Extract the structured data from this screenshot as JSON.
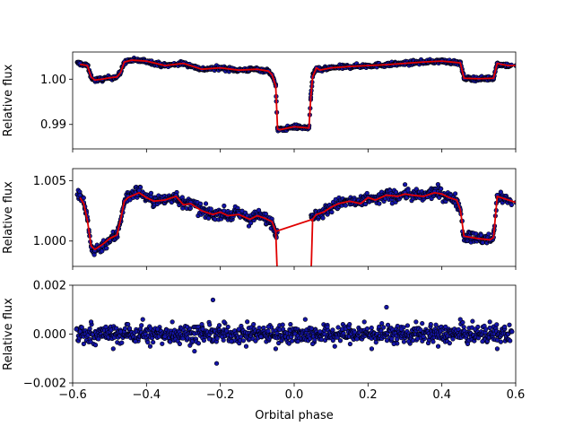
{
  "figure": {
    "xlabel": "Orbital phase",
    "xlim": [
      -0.6,
      0.6
    ],
    "xticks": [
      -0.6,
      -0.4,
      -0.2,
      0.0,
      0.2,
      0.4,
      0.6
    ],
    "xtick_labels": [
      "−0.6",
      "−0.4",
      "−0.2",
      "0.0",
      "0.2",
      "0.4",
      "0.6"
    ]
  },
  "colors": {
    "point_face": "#1414a8",
    "point_edge": "#000000",
    "model_line": "#e00000"
  },
  "chart_data": [
    {
      "type": "scatter",
      "title": "",
      "ylabel": "Relative flux",
      "xlim": [
        -0.6,
        0.6
      ],
      "ylim": [
        0.9846,
        1.006
      ],
      "yticks": [
        0.99,
        1.0
      ],
      "ytick_labels": [
        "0.99",
        "1.00"
      ],
      "grid": false,
      "series": [
        {
          "kind": "points",
          "x": [
            -0.58,
            -0.56,
            -0.55,
            -0.54,
            -0.52,
            -0.5,
            -0.48,
            -0.47,
            -0.46,
            -0.44,
            -0.4,
            -0.35,
            -0.3,
            -0.25,
            -0.2,
            -0.15,
            -0.1,
            -0.07,
            -0.06,
            -0.05,
            -0.045,
            -0.04,
            0.0,
            0.04,
            0.045,
            0.05,
            0.06,
            0.07,
            0.1,
            0.15,
            0.2,
            0.25,
            0.3,
            0.35,
            0.4,
            0.45,
            0.46,
            0.5,
            0.54,
            0.55,
            0.56,
            0.58,
            0.6
          ],
          "y": [
            1.0035,
            1.003,
            1.0005,
            0.9998,
            1.0,
            1.0003,
            1.0005,
            1.0015,
            1.0038,
            1.0042,
            1.004,
            1.003,
            1.0035,
            1.0022,
            1.0025,
            1.002,
            1.0022,
            1.0018,
            1.001,
            0.9985,
            0.989,
            0.9888,
            0.9895,
            0.9892,
            0.996,
            1.0005,
            1.0025,
            1.002,
            1.0025,
            1.0028,
            1.003,
            1.0032,
            1.0035,
            1.0038,
            1.004,
            1.0036,
            1.0002,
            1.0001,
            1.0002,
            1.0035,
            1.0033,
            1.003,
            1.003
          ]
        },
        {
          "kind": "model",
          "x": [
            -0.58,
            -0.56,
            -0.55,
            -0.54,
            -0.52,
            -0.5,
            -0.48,
            -0.47,
            -0.46,
            -0.44,
            -0.4,
            -0.35,
            -0.3,
            -0.25,
            -0.2,
            -0.15,
            -0.1,
            -0.07,
            -0.06,
            -0.05,
            -0.045,
            -0.04,
            0.0,
            0.04,
            0.045,
            0.05,
            0.06,
            0.07,
            0.1,
            0.15,
            0.2,
            0.25,
            0.3,
            0.35,
            0.4,
            0.45,
            0.46,
            0.5,
            0.54,
            0.55,
            0.56,
            0.58,
            0.6
          ],
          "y": [
            1.0033,
            1.003,
            1.0005,
            0.9998,
            1.0,
            1.0003,
            1.0005,
            1.0015,
            1.0038,
            1.0042,
            1.004,
            1.003,
            1.0035,
            1.0022,
            1.0025,
            1.002,
            1.0022,
            1.0018,
            1.001,
            0.9985,
            0.989,
            0.9888,
            0.9895,
            0.9892,
            0.996,
            1.0005,
            1.0025,
            1.002,
            1.0025,
            1.0028,
            1.003,
            1.0032,
            1.0035,
            1.0038,
            1.004,
            1.0036,
            1.0002,
            1.0001,
            1.0002,
            1.0035,
            1.0033,
            1.003,
            1.003
          ]
        }
      ]
    },
    {
      "type": "scatter",
      "title": "",
      "ylabel": "Relative flux",
      "xlim": [
        -0.6,
        0.6
      ],
      "ylim": [
        0.9979,
        1.006
      ],
      "yticks": [
        1.0,
        1.005
      ],
      "ytick_labels": [
        "1.000",
        "1.005"
      ],
      "grid": false,
      "series": [
        {
          "kind": "points",
          "x": [
            -0.58,
            -0.57,
            -0.56,
            -0.55,
            -0.54,
            -0.53,
            -0.52,
            -0.5,
            -0.48,
            -0.47,
            -0.46,
            -0.45,
            -0.42,
            -0.4,
            -0.38,
            -0.35,
            -0.32,
            -0.3,
            -0.28,
            -0.25,
            -0.22,
            -0.2,
            -0.18,
            -0.15,
            -0.12,
            -0.1,
            -0.08,
            -0.06,
            -0.05,
            0.05,
            0.06,
            0.08,
            0.1,
            0.12,
            0.15,
            0.18,
            0.2,
            0.22,
            0.25,
            0.28,
            0.3,
            0.32,
            0.35,
            0.38,
            0.4,
            0.42,
            0.44,
            0.45,
            0.46,
            0.5,
            0.53,
            0.54,
            0.55,
            0.57,
            0.6
          ],
          "y": [
            1.0038,
            1.0032,
            1.0018,
            0.9995,
            0.9992,
            0.9994,
            0.9996,
            1.0001,
            1.0005,
            1.0018,
            1.0033,
            1.0037,
            1.0042,
            1.0036,
            1.0033,
            1.0034,
            1.0038,
            1.003,
            1.0032,
            1.0025,
            1.0022,
            1.0024,
            1.0021,
            1.0023,
            1.0018,
            1.0021,
            1.0019,
            1.0016,
            1.0008,
            1.0018,
            1.0022,
            1.0024,
            1.0028,
            1.0031,
            1.0033,
            1.0031,
            1.0036,
            1.0034,
            1.0038,
            1.0037,
            1.004,
            1.0038,
            1.0037,
            1.0041,
            1.0039,
            1.0036,
            1.0034,
            1.0026,
            1.0004,
            1.0002,
            1.0001,
            1.0003,
            1.0038,
            1.0035,
            1.0032
          ]
        },
        {
          "kind": "model",
          "x": [
            -0.58,
            -0.57,
            -0.56,
            -0.55,
            -0.54,
            -0.53,
            -0.52,
            -0.5,
            -0.48,
            -0.47,
            -0.46,
            -0.45,
            -0.42,
            -0.4,
            -0.38,
            -0.35,
            -0.32,
            -0.3,
            -0.28,
            -0.25,
            -0.22,
            -0.2,
            -0.18,
            -0.15,
            -0.12,
            -0.1,
            -0.08,
            -0.06,
            -0.05,
            0.05,
            0.06,
            0.08,
            0.1,
            0.12,
            0.15,
            0.18,
            0.2,
            0.22,
            0.25,
            0.28,
            0.3,
            0.32,
            0.35,
            0.38,
            0.4,
            0.42,
            0.44,
            0.45,
            0.46,
            0.5,
            0.53,
            0.54,
            0.55,
            0.57,
            0.6
          ],
          "y": [
            1.0036,
            1.0031,
            1.0017,
            0.9996,
            0.9993,
            0.9995,
            0.9997,
            1.0002,
            1.0005,
            1.0018,
            1.0033,
            1.0036,
            1.004,
            1.0036,
            1.0033,
            1.0034,
            1.0037,
            1.003,
            1.0031,
            1.0025,
            1.0022,
            1.0024,
            1.0021,
            1.0022,
            1.0018,
            1.0021,
            1.0019,
            1.0016,
            1.0008,
            1.0018,
            1.0022,
            1.0024,
            1.0028,
            1.0031,
            1.0033,
            1.0031,
            1.0036,
            1.0034,
            1.0038,
            1.0037,
            1.0039,
            1.0038,
            1.0037,
            1.004,
            1.0039,
            1.0036,
            1.0034,
            1.0026,
            1.0004,
            1.0002,
            1.0001,
            1.0003,
            1.0037,
            1.0035,
            1.0032
          ]
        }
      ]
    },
    {
      "type": "scatter",
      "title": "",
      "ylabel": "Relative flux",
      "xlim": [
        -0.6,
        0.6
      ],
      "ylim": [
        -0.002,
        0.002
      ],
      "yticks": [
        -0.002,
        0.0,
        0.002
      ],
      "ytick_labels": [
        "−0.002",
        "0.000",
        "0.002"
      ],
      "grid": false,
      "series": [
        {
          "kind": "residuals",
          "x": [
            -0.59,
            -0.57,
            -0.55,
            -0.53,
            -0.51,
            -0.49,
            -0.47,
            -0.45,
            -0.43,
            -0.41,
            -0.39,
            -0.37,
            -0.35,
            -0.33,
            -0.31,
            -0.29,
            -0.27,
            -0.25,
            -0.23,
            -0.22,
            -0.21,
            -0.19,
            -0.17,
            -0.15,
            -0.13,
            -0.11,
            -0.09,
            -0.07,
            -0.05,
            -0.03,
            -0.01,
            0.01,
            0.03,
            0.05,
            0.07,
            0.09,
            0.11,
            0.13,
            0.15,
            0.17,
            0.19,
            0.21,
            0.23,
            0.25,
            0.27,
            0.29,
            0.31,
            0.33,
            0.35,
            0.37,
            0.39,
            0.41,
            0.43,
            0.45,
            0.47,
            0.49,
            0.51,
            0.53,
            0.55,
            0.57,
            0.59
          ],
          "y": [
            0.0002,
            -0.0004,
            0.0005,
            -0.0002,
            0.0003,
            -0.0006,
            0.0001,
            0.0004,
            -0.0003,
            0.0006,
            -0.0005,
            0.0002,
            -0.0001,
            0.0005,
            -0.0004,
            0.0003,
            -0.0007,
            0.0004,
            -0.0002,
            0.0014,
            -0.0012,
            0.0005,
            -0.0003,
            0.0002,
            -0.0005,
            0.0004,
            -0.0001,
            0.0003,
            -0.0006,
            0.0002,
            0.0004,
            -0.0003,
            0.0006,
            -0.0004,
            0.0001,
            0.0003,
            -0.0005,
            0.0002,
            0.0004,
            -0.0002,
            0.0005,
            -0.0006,
            0.0003,
            0.0011,
            -0.0004,
            0.0002,
            -0.0003,
            0.0005,
            -0.0001,
            0.0004,
            -0.0005,
            0.0003,
            -0.0002,
            0.0006,
            -0.0004,
            0.0002,
            -0.0003,
            0.0005,
            -0.0006,
            0.0003,
            0.0001
          ]
        }
      ]
    }
  ]
}
